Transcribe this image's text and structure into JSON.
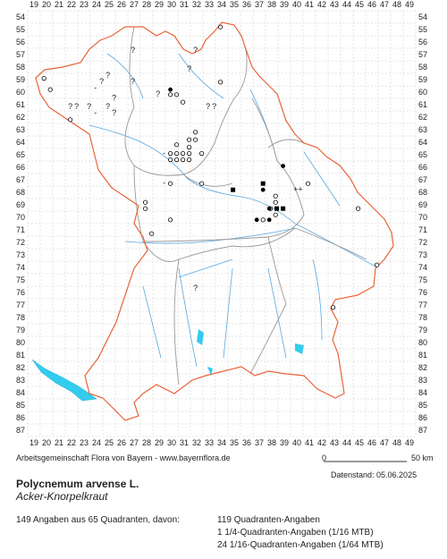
{
  "map": {
    "columns": [
      19,
      20,
      21,
      22,
      23,
      24,
      25,
      26,
      27,
      28,
      29,
      30,
      31,
      32,
      33,
      34,
      35,
      36,
      37,
      38,
      39,
      40,
      41,
      42,
      43,
      44,
      45,
      46,
      47,
      48,
      49
    ],
    "rows": [
      54,
      55,
      56,
      57,
      58,
      59,
      60,
      61,
      62,
      63,
      64,
      65,
      66,
      67,
      68,
      69,
      70,
      71,
      72,
      73,
      74,
      75,
      76,
      77,
      78,
      79,
      80,
      81,
      82,
      83,
      84,
      85,
      86,
      87
    ],
    "points": [
      {
        "x": 19.8,
        "y": 58.9,
        "symbol": "open"
      },
      {
        "x": 20.3,
        "y": 59.8,
        "symbol": "open"
      },
      {
        "x": 29.9,
        "y": 59.8,
        "symbol": "filled"
      },
      {
        "x": 29.9,
        "y": 60.2,
        "symbol": "open"
      },
      {
        "x": 30.4,
        "y": 60.2,
        "symbol": "open"
      },
      {
        "x": 30.9,
        "y": 60.8,
        "symbol": "open"
      },
      {
        "x": 33.9,
        "y": 54.8,
        "symbol": "open"
      },
      {
        "x": 33.9,
        "y": 59.2,
        "symbol": "open"
      },
      {
        "x": 21.9,
        "y": 62.2,
        "symbol": "open"
      },
      {
        "x": 31.9,
        "y": 63.2,
        "symbol": "open"
      },
      {
        "x": 31.4,
        "y": 63.8,
        "symbol": "open"
      },
      {
        "x": 31.9,
        "y": 63.8,
        "symbol": "open"
      },
      {
        "x": 30.4,
        "y": 64.2,
        "symbol": "open"
      },
      {
        "x": 31.4,
        "y": 64.4,
        "symbol": "open"
      },
      {
        "x": 29.4,
        "y": 64.9,
        "symbol": "-"
      },
      {
        "x": 29.9,
        "y": 64.9,
        "symbol": "open"
      },
      {
        "x": 30.4,
        "y": 64.9,
        "symbol": "open"
      },
      {
        "x": 30.9,
        "y": 64.9,
        "symbol": "open"
      },
      {
        "x": 31.4,
        "y": 64.9,
        "symbol": "open"
      },
      {
        "x": 32.4,
        "y": 64.9,
        "symbol": "open"
      },
      {
        "x": 29.9,
        "y": 65.4,
        "symbol": "open"
      },
      {
        "x": 30.4,
        "y": 65.4,
        "symbol": "open"
      },
      {
        "x": 30.9,
        "y": 65.4,
        "symbol": "open"
      },
      {
        "x": 31.4,
        "y": 65.4,
        "symbol": "open"
      },
      {
        "x": 38.9,
        "y": 65.9,
        "symbol": "filled"
      },
      {
        "x": 29.4,
        "y": 67.3,
        "symbol": "-"
      },
      {
        "x": 29.9,
        "y": 67.3,
        "symbol": "open"
      },
      {
        "x": 32.4,
        "y": 67.3,
        "symbol": "open"
      },
      {
        "x": 34.9,
        "y": 67.8,
        "symbol": "square"
      },
      {
        "x": 37.3,
        "y": 67.3,
        "symbol": "square"
      },
      {
        "x": 37.3,
        "y": 67.8,
        "symbol": "filled"
      },
      {
        "x": 40.9,
        "y": 67.3,
        "symbol": "open"
      },
      {
        "x": 40.1,
        "y": 67.8,
        "symbol": "++"
      },
      {
        "x": 38.3,
        "y": 68.3,
        "symbol": "open"
      },
      {
        "x": 27.9,
        "y": 68.8,
        "symbol": "open"
      },
      {
        "x": 27.9,
        "y": 69.3,
        "symbol": "open"
      },
      {
        "x": 38.3,
        "y": 68.8,
        "symbol": "open"
      },
      {
        "x": 37.9,
        "y": 69.3,
        "symbol": "open"
      },
      {
        "x": 37.8,
        "y": 69.3,
        "symbol": "filled"
      },
      {
        "x": 38.4,
        "y": 69.3,
        "symbol": "square"
      },
      {
        "x": 38.9,
        "y": 69.3,
        "symbol": "square"
      },
      {
        "x": 38.3,
        "y": 69.8,
        "symbol": "open"
      },
      {
        "x": 36.8,
        "y": 70.2,
        "symbol": "filled"
      },
      {
        "x": 37.3,
        "y": 70.2,
        "symbol": "open"
      },
      {
        "x": 37.8,
        "y": 70.2,
        "symbol": "filled"
      },
      {
        "x": 29.9,
        "y": 70.2,
        "symbol": "open"
      },
      {
        "x": 44.9,
        "y": 69.3,
        "symbol": "open"
      },
      {
        "x": 28.4,
        "y": 71.3,
        "symbol": "open"
      },
      {
        "x": 46.4,
        "y": 73.8,
        "symbol": "open"
      },
      {
        "x": 42.9,
        "y": 77.2,
        "symbol": "open"
      },
      {
        "x": 26.9,
        "y": 56.7,
        "symbol": "?"
      },
      {
        "x": 24.9,
        "y": 58.7,
        "symbol": "?"
      },
      {
        "x": 24.4,
        "y": 59.2,
        "symbol": "?"
      },
      {
        "x": 23.9,
        "y": 59.7,
        "symbol": "-"
      },
      {
        "x": 25.4,
        "y": 60.5,
        "symbol": "?"
      },
      {
        "x": 26.9,
        "y": 59.2,
        "symbol": "?"
      },
      {
        "x": 28.9,
        "y": 60.2,
        "symbol": "?"
      },
      {
        "x": 21.9,
        "y": 61.2,
        "symbol": "?"
      },
      {
        "x": 22.4,
        "y": 61.2,
        "symbol": "?"
      },
      {
        "x": 23.4,
        "y": 61.2,
        "symbol": "?"
      },
      {
        "x": 24.9,
        "y": 61.2,
        "symbol": "?"
      },
      {
        "x": 25.4,
        "y": 61.7,
        "symbol": "?"
      },
      {
        "x": 23.9,
        "y": 61.7,
        "symbol": "-"
      },
      {
        "x": 31.9,
        "y": 56.7,
        "symbol": "?"
      },
      {
        "x": 31.4,
        "y": 58.2,
        "symbol": "?"
      },
      {
        "x": 32.9,
        "y": 61.2,
        "symbol": "?"
      },
      {
        "x": 33.4,
        "y": 61.2,
        "symbol": "?"
      },
      {
        "x": 31.9,
        "y": 75.7,
        "symbol": "?"
      }
    ],
    "credit": "Arbeitsgemeinschaft Flora von Bayern - www.bayernflora.de",
    "scale_start": "0",
    "scale_end": "50 km",
    "date": "Datenstand: 05.06.2025",
    "title": "Polycnemum arvense L.",
    "subtitle": "Acker-Knorpelkraut",
    "summary": "149 Angaben aus 65 Quadranten, davon:",
    "details": [
      "119 Quadranten-Angaben",
      "1 1/4-Quadranten-Angaben (1/16 MTB)",
      "24 1/16-Quadranten-Angaben (1/64 MTB)"
    ]
  }
}
